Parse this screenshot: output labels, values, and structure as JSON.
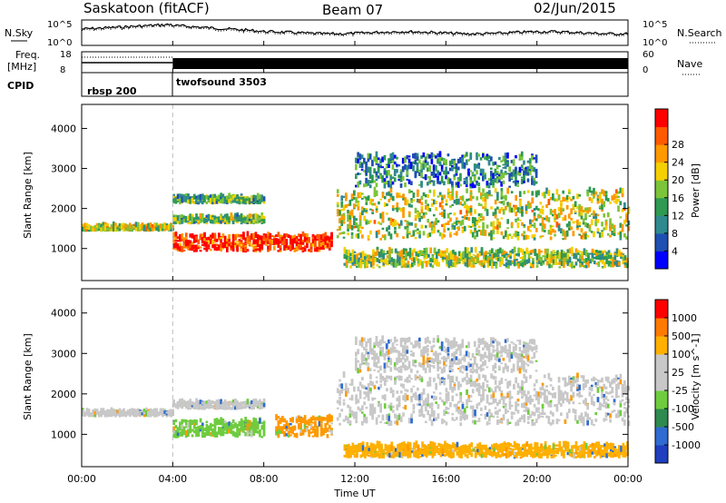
{
  "header": {
    "station": "Saskatoon (fitACF)",
    "beam": "Beam 07",
    "date": "02/Jun/2015"
  },
  "summary_panels": {
    "nsky_label": "N.Sky",
    "freq_label_1": "Freq.",
    "freq_label_2": "[MHz]",
    "cpid_label": "CPID",
    "nsearch_label": "N.Search",
    "nave_label": "Nave",
    "noise_left_ticks": [
      "10^5",
      "10^0"
    ],
    "noise_right_ticks": [
      "10^5",
      "10^0"
    ],
    "freq_ticks": [
      "18",
      "8"
    ],
    "nave_ticks": [
      "60",
      "0"
    ],
    "cpid_segments": [
      {
        "name": "rbsp 200",
        "start_hour": 0
      },
      {
        "name": "twofsound 3503",
        "start_hour": 4
      }
    ]
  },
  "chart_data": [
    {
      "type": "heatmap",
      "panel": "power",
      "xlabel": "",
      "ylabel": "Slant Range [km]",
      "xlim": [
        0,
        24
      ],
      "ylim": [
        200,
        4600
      ],
      "yticks": [
        "1000",
        "2000",
        "3000",
        "4000"
      ],
      "colorbar_label": "Power [dB]",
      "colorbar_ticks": [
        "4",
        "8",
        "12",
        "16",
        "20",
        "24",
        "28"
      ],
      "colorbar_colors": [
        "#0000ff",
        "#1f4fb0",
        "#2f8a8f",
        "#2f9a52",
        "#7cc53a",
        "#f5d000",
        "#ff9900",
        "#ff5a00",
        "#ff0000"
      ],
      "bands": [
        {
          "x0": 0.0,
          "x1": 4.0,
          "y0": 1420,
          "y1": 1520,
          "level": 0.55
        },
        {
          "x0": 4.0,
          "x1": 11.0,
          "y0": 900,
          "y1": 1300,
          "level": 0.9
        },
        {
          "x0": 4.0,
          "x1": 8.0,
          "y0": 1600,
          "y1": 1750,
          "level": 0.45
        },
        {
          "x0": 4.0,
          "x1": 8.0,
          "y0": 2100,
          "y1": 2250,
          "level": 0.4
        },
        {
          "x0": 11.2,
          "x1": 24.0,
          "y0": 1200,
          "y1": 2400,
          "level": 0.55
        },
        {
          "x0": 11.5,
          "x1": 24.0,
          "y0": 500,
          "y1": 900,
          "level": 0.5
        },
        {
          "x0": 12.0,
          "x1": 20.0,
          "y0": 2500,
          "y1": 3300,
          "level": 0.3
        }
      ]
    },
    {
      "type": "heatmap",
      "panel": "velocity",
      "xlabel": "Time UT",
      "ylabel": "Slant Range [km]",
      "xlim": [
        0,
        24
      ],
      "ylim": [
        200,
        4600
      ],
      "xticks": [
        "00:00",
        "04:00",
        "08:00",
        "12:00",
        "16:00",
        "20:00",
        "00:00"
      ],
      "yticks": [
        "1000",
        "2000",
        "3000",
        "4000"
      ],
      "colorbar_label": "Velocity [m s^-1]",
      "colorbar_ticks": [
        "1000",
        "500",
        "100",
        "25",
        "-25",
        "-100",
        "-500",
        "-1000"
      ],
      "colorbar_colors": [
        "#1f3fbf",
        "#2f6bd0",
        "#2f8a4f",
        "#6fcc3f",
        "#c8c8c8",
        "#c8c8c8",
        "#ffb000",
        "#ff7a00",
        "#ff0000"
      ],
      "bands": [
        {
          "x0": 0.0,
          "x1": 4.0,
          "y0": 1420,
          "y1": 1520,
          "color": "#c8c8c8"
        },
        {
          "x0": 4.0,
          "x1": 8.0,
          "y0": 900,
          "y1": 1300,
          "color": "#6fcc3f"
        },
        {
          "x0": 8.5,
          "x1": 11.0,
          "y0": 900,
          "y1": 1400,
          "color": "#ff9900"
        },
        {
          "x0": 4.0,
          "x1": 8.0,
          "y0": 1600,
          "y1": 1750,
          "color": "#c8c8c8"
        },
        {
          "x0": 11.2,
          "x1": 24.0,
          "y0": 1200,
          "y1": 2400,
          "color": "#c8c8c8"
        },
        {
          "x0": 12.0,
          "x1": 20.0,
          "y0": 2500,
          "y1": 3300,
          "color": "#c8c8c8"
        },
        {
          "x0": 11.5,
          "x1": 24.0,
          "y0": 400,
          "y1": 700,
          "color": "#ffb000"
        }
      ]
    }
  ]
}
